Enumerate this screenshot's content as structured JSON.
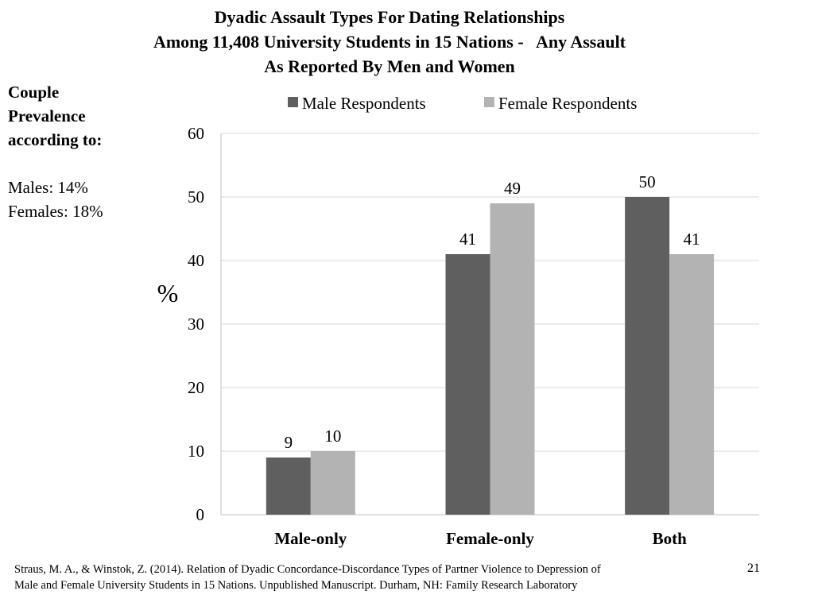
{
  "title_lines": [
    "Dyadic Assault Types For Dating Relationships",
    "Among 11,408 University Students in 15 Nations -   Any Assault",
    "As Reported By Men and Women"
  ],
  "side": {
    "heading_lines": [
      "Couple",
      "Prevalence",
      "according to:"
    ],
    "values": [
      "Males: 14%",
      "Females: 18%"
    ]
  },
  "colors": {
    "male": "#5f5f5f",
    "female": "#b3b3b3",
    "grid": "#d9d9d9",
    "axis": "#bfbfbf"
  },
  "chart_data": {
    "type": "bar",
    "title": "",
    "xlabel": "",
    "ylabel": "%",
    "ylim": [
      0,
      60
    ],
    "yticks": [
      0,
      10,
      20,
      30,
      40,
      50,
      60
    ],
    "grid": true,
    "legend_position": "top",
    "categories": [
      "Male-only",
      "Female-only",
      "Both"
    ],
    "series": [
      {
        "name": "Male Respondents",
        "values": [
          9,
          41,
          50
        ]
      },
      {
        "name": "Female Respondents",
        "values": [
          10,
          49,
          41
        ]
      }
    ]
  },
  "footer": {
    "line1": "Straus, M. A., & Winstok, Z. (2014).  Relation of Dyadic Concordance-Discordance Types of Partner Violence to Depression of",
    "line2": "Male and Female  University Students in 15 Nations. Unpublished Manuscript.  Durham, NH: Family Research Laboratory",
    "page_number": "21"
  }
}
